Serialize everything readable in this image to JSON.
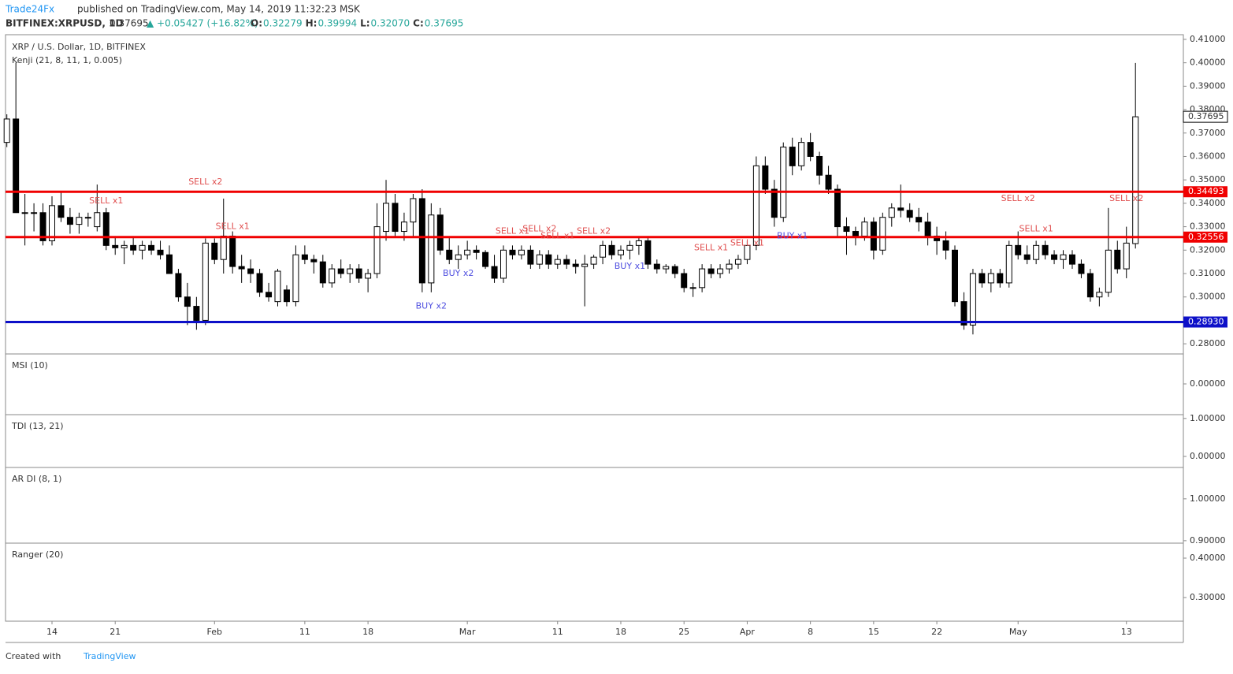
{
  "header": {
    "publisher": "Trade24Fx",
    "published": "published on TradingView.com, May 14, 2019 11:32:23 MSK",
    "symbol": "BITFINEX:XRPUSD, 1D",
    "last": "0.37695",
    "change": "▲ +0.05427 (+16.82%)",
    "ohlc": [
      {
        "k": "O:",
        "v": "0.32279"
      },
      {
        "k": "H:",
        "v": "0.39994"
      },
      {
        "k": "L:",
        "v": "0.32070"
      },
      {
        "k": "C:",
        "v": "0.37695"
      }
    ]
  },
  "footer": {
    "created": "Created with",
    "brand": "TradingView"
  },
  "chart_data": {
    "type": "candlestick",
    "title": "XRP / U.S. Dollar, 1D, BITFINEX",
    "indicator": "Kenji (21, 8, 11, 1, 0.005)",
    "ylim": [
      0.276,
      0.412
    ],
    "yticks": [
      {
        "value": 0.41,
        "label": "0.41000"
      },
      {
        "value": 0.4,
        "label": "0.40000"
      },
      {
        "value": 0.39,
        "label": "0.39000"
      },
      {
        "value": 0.38,
        "label": "0.38000"
      },
      {
        "value": 0.37,
        "label": "0.37000"
      },
      {
        "value": 0.36,
        "label": "0.36000"
      },
      {
        "value": 0.35,
        "label": "0.35000"
      },
      {
        "value": 0.34,
        "label": "0.34000"
      },
      {
        "value": 0.33,
        "label": "0.33000"
      },
      {
        "value": 0.32,
        "label": "0.32000"
      },
      {
        "value": 0.31,
        "label": "0.31000"
      },
      {
        "value": 0.3,
        "label": "0.30000"
      },
      {
        "value": 0.29,
        "label": "0.29000"
      },
      {
        "value": 0.28,
        "label": "0.28000"
      }
    ],
    "xticks": [
      {
        "value": 5,
        "label": "14"
      },
      {
        "value": 12,
        "label": "21"
      },
      {
        "value": 23,
        "label": "Feb"
      },
      {
        "value": 33,
        "label": "11"
      },
      {
        "value": 40,
        "label": "18"
      },
      {
        "value": 51,
        "label": "Mar"
      },
      {
        "value": 61,
        "label": "11"
      },
      {
        "value": 68,
        "label": "18"
      },
      {
        "value": 75,
        "label": "25"
      },
      {
        "value": 82,
        "label": "Apr"
      },
      {
        "value": 89,
        "label": "8"
      },
      {
        "value": 96,
        "label": "15"
      },
      {
        "value": 103,
        "label": "22"
      },
      {
        "value": 112,
        "label": "May"
      },
      {
        "value": 124,
        "label": "13"
      }
    ],
    "levels": [
      {
        "value": 0.34493,
        "label": "0.34493",
        "color": "#f00000"
      },
      {
        "value": 0.32556,
        "label": "0.32556",
        "color": "#f00000"
      },
      {
        "value": 0.2893,
        "label": "0.28930",
        "color": "#0d10c8"
      }
    ],
    "price_label": {
      "value": 0.37695,
      "label": "0.37695"
    },
    "candles": [
      [
        0.366,
        0.378,
        0.364,
        0.376
      ],
      [
        0.376,
        0.4,
        0.336,
        0.336
      ],
      [
        0.336,
        0.344,
        0.322,
        0.336
      ],
      [
        0.336,
        0.34,
        0.328,
        0.336
      ],
      [
        0.336,
        0.34,
        0.322,
        0.324
      ],
      [
        0.324,
        0.343,
        0.322,
        0.339
      ],
      [
        0.339,
        0.345,
        0.332,
        0.334
      ],
      [
        0.334,
        0.338,
        0.327,
        0.331
      ],
      [
        0.331,
        0.336,
        0.327,
        0.334
      ],
      [
        0.334,
        0.336,
        0.33,
        0.334
      ],
      [
        0.33,
        0.348,
        0.328,
        0.336
      ],
      [
        0.336,
        0.338,
        0.32,
        0.322
      ],
      [
        0.322,
        0.326,
        0.318,
        0.321
      ],
      [
        0.321,
        0.324,
        0.314,
        0.322
      ],
      [
        0.322,
        0.326,
        0.318,
        0.32
      ],
      [
        0.32,
        0.324,
        0.316,
        0.322
      ],
      [
        0.322,
        0.324,
        0.318,
        0.32
      ],
      [
        0.32,
        0.324,
        0.316,
        0.318
      ],
      [
        0.318,
        0.322,
        0.31,
        0.31
      ],
      [
        0.31,
        0.312,
        0.298,
        0.3
      ],
      [
        0.3,
        0.306,
        0.288,
        0.296
      ],
      [
        0.296,
        0.3,
        0.286,
        0.29
      ],
      [
        0.29,
        0.325,
        0.288,
        0.323
      ],
      [
        0.323,
        0.325,
        0.314,
        0.316
      ],
      [
        0.316,
        0.342,
        0.31,
        0.326
      ],
      [
        0.326,
        0.328,
        0.31,
        0.313
      ],
      [
        0.313,
        0.318,
        0.306,
        0.312
      ],
      [
        0.312,
        0.316,
        0.306,
        0.31
      ],
      [
        0.31,
        0.312,
        0.3,
        0.302
      ],
      [
        0.302,
        0.306,
        0.298,
        0.3
      ],
      [
        0.298,
        0.312,
        0.296,
        0.311
      ],
      [
        0.303,
        0.305,
        0.296,
        0.298
      ],
      [
        0.298,
        0.322,
        0.296,
        0.318
      ],
      [
        0.318,
        0.322,
        0.314,
        0.316
      ],
      [
        0.316,
        0.318,
        0.31,
        0.315
      ],
      [
        0.315,
        0.318,
        0.304,
        0.306
      ],
      [
        0.306,
        0.314,
        0.304,
        0.312
      ],
      [
        0.312,
        0.316,
        0.308,
        0.31
      ],
      [
        0.31,
        0.314,
        0.306,
        0.312
      ],
      [
        0.312,
        0.314,
        0.306,
        0.308
      ],
      [
        0.308,
        0.312,
        0.302,
        0.31
      ],
      [
        0.31,
        0.34,
        0.308,
        0.33
      ],
      [
        0.328,
        0.35,
        0.324,
        0.34
      ],
      [
        0.34,
        0.344,
        0.326,
        0.328
      ],
      [
        0.328,
        0.336,
        0.324,
        0.332
      ],
      [
        0.332,
        0.344,
        0.326,
        0.342
      ],
      [
        0.342,
        0.346,
        0.302,
        0.306
      ],
      [
        0.306,
        0.34,
        0.302,
        0.335
      ],
      [
        0.335,
        0.338,
        0.318,
        0.32
      ],
      [
        0.32,
        0.326,
        0.314,
        0.316
      ],
      [
        0.316,
        0.322,
        0.312,
        0.318
      ],
      [
        0.318,
        0.324,
        0.316,
        0.32
      ],
      [
        0.32,
        0.322,
        0.316,
        0.319
      ],
      [
        0.319,
        0.32,
        0.312,
        0.313
      ],
      [
        0.313,
        0.318,
        0.306,
        0.308
      ],
      [
        0.308,
        0.322,
        0.306,
        0.32
      ],
      [
        0.32,
        0.322,
        0.316,
        0.318
      ],
      [
        0.318,
        0.322,
        0.316,
        0.32
      ],
      [
        0.32,
        0.322,
        0.312,
        0.314
      ],
      [
        0.314,
        0.32,
        0.312,
        0.318
      ],
      [
        0.318,
        0.32,
        0.312,
        0.314
      ],
      [
        0.314,
        0.318,
        0.312,
        0.316
      ],
      [
        0.316,
        0.318,
        0.312,
        0.314
      ],
      [
        0.314,
        0.316,
        0.31,
        0.313
      ],
      [
        0.313,
        0.318,
        0.296,
        0.314
      ],
      [
        0.314,
        0.318,
        0.312,
        0.317
      ],
      [
        0.317,
        0.324,
        0.314,
        0.322
      ],
      [
        0.322,
        0.324,
        0.316,
        0.318
      ],
      [
        0.318,
        0.322,
        0.316,
        0.32
      ],
      [
        0.32,
        0.324,
        0.316,
        0.322
      ],
      [
        0.322,
        0.326,
        0.318,
        0.324
      ],
      [
        0.324,
        0.326,
        0.312,
        0.314
      ],
      [
        0.314,
        0.316,
        0.31,
        0.312
      ],
      [
        0.312,
        0.314,
        0.31,
        0.313
      ],
      [
        0.313,
        0.314,
        0.308,
        0.31
      ],
      [
        0.31,
        0.312,
        0.302,
        0.304
      ],
      [
        0.304,
        0.306,
        0.3,
        0.304
      ],
      [
        0.304,
        0.314,
        0.302,
        0.312
      ],
      [
        0.312,
        0.314,
        0.308,
        0.31
      ],
      [
        0.31,
        0.314,
        0.308,
        0.312
      ],
      [
        0.312,
        0.316,
        0.31,
        0.314
      ],
      [
        0.314,
        0.318,
        0.312,
        0.316
      ],
      [
        0.316,
        0.324,
        0.314,
        0.322
      ],
      [
        0.322,
        0.36,
        0.32,
        0.356
      ],
      [
        0.356,
        0.36,
        0.344,
        0.346
      ],
      [
        0.346,
        0.35,
        0.33,
        0.334
      ],
      [
        0.334,
        0.366,
        0.332,
        0.364
      ],
      [
        0.364,
        0.368,
        0.352,
        0.356
      ],
      [
        0.356,
        0.368,
        0.354,
        0.366
      ],
      [
        0.366,
        0.37,
        0.358,
        0.36
      ],
      [
        0.36,
        0.362,
        0.348,
        0.352
      ],
      [
        0.352,
        0.356,
        0.344,
        0.346
      ],
      [
        0.346,
        0.348,
        0.326,
        0.33
      ],
      [
        0.33,
        0.334,
        0.318,
        0.328
      ],
      [
        0.328,
        0.33,
        0.322,
        0.326
      ],
      [
        0.326,
        0.334,
        0.324,
        0.332
      ],
      [
        0.332,
        0.334,
        0.316,
        0.32
      ],
      [
        0.32,
        0.336,
        0.318,
        0.334
      ],
      [
        0.334,
        0.34,
        0.33,
        0.338
      ],
      [
        0.338,
        0.348,
        0.334,
        0.337
      ],
      [
        0.337,
        0.34,
        0.332,
        0.334
      ],
      [
        0.334,
        0.338,
        0.328,
        0.332
      ],
      [
        0.332,
        0.336,
        0.322,
        0.326
      ],
      [
        0.326,
        0.33,
        0.318,
        0.324
      ],
      [
        0.324,
        0.328,
        0.316,
        0.32
      ],
      [
        0.32,
        0.322,
        0.296,
        0.298
      ],
      [
        0.298,
        0.302,
        0.286,
        0.288
      ],
      [
        0.288,
        0.312,
        0.284,
        0.31
      ],
      [
        0.31,
        0.312,
        0.304,
        0.306
      ],
      [
        0.306,
        0.312,
        0.302,
        0.31
      ],
      [
        0.31,
        0.312,
        0.304,
        0.306
      ],
      [
        0.306,
        0.324,
        0.304,
        0.322
      ],
      [
        0.322,
        0.328,
        0.316,
        0.318
      ],
      [
        0.318,
        0.322,
        0.314,
        0.316
      ],
      [
        0.316,
        0.324,
        0.314,
        0.322
      ],
      [
        0.322,
        0.324,
        0.316,
        0.318
      ],
      [
        0.318,
        0.32,
        0.314,
        0.316
      ],
      [
        0.316,
        0.32,
        0.312,
        0.318
      ],
      [
        0.318,
        0.32,
        0.312,
        0.314
      ],
      [
        0.314,
        0.316,
        0.308,
        0.31
      ],
      [
        0.31,
        0.312,
        0.298,
        0.3
      ],
      [
        0.3,
        0.304,
        0.296,
        0.302
      ],
      [
        0.302,
        0.338,
        0.3,
        0.32
      ],
      [
        0.32,
        0.324,
        0.31,
        0.312
      ],
      [
        0.312,
        0.33,
        0.308,
        0.323
      ],
      [
        0.32279,
        0.39994,
        0.3207,
        0.37695
      ]
    ],
    "annotations": [
      {
        "text": "SELL x1",
        "index": 11,
        "price": 0.341,
        "color": "#e05050"
      },
      {
        "text": "SELL x2",
        "index": 22,
        "price": 0.349,
        "color": "#e05050"
      },
      {
        "text": "SELL x1",
        "index": 25,
        "price": 0.33,
        "color": "#e05050"
      },
      {
        "text": "BUY x2",
        "index": 47,
        "price": 0.296,
        "color": "#5050e0"
      },
      {
        "text": "BUY x2",
        "index": 50,
        "price": 0.31,
        "color": "#5050e0"
      },
      {
        "text": "SELL x1",
        "index": 56,
        "price": 0.328,
        "color": "#e05050"
      },
      {
        "text": "SELL x2",
        "index": 59,
        "price": 0.329,
        "color": "#e05050"
      },
      {
        "text": "SELL x1",
        "index": 61,
        "price": 0.326,
        "color": "#e05050"
      },
      {
        "text": "SELL x2",
        "index": 65,
        "price": 0.328,
        "color": "#e05050"
      },
      {
        "text": "BUY x1",
        "index": 69,
        "price": 0.313,
        "color": "#5050e0"
      },
      {
        "text": "SELL x1",
        "index": 78,
        "price": 0.321,
        "color": "#e05050"
      },
      {
        "text": "SELL x1",
        "index": 82,
        "price": 0.323,
        "color": "#e05050"
      },
      {
        "text": "BUY x1",
        "index": 87,
        "price": 0.326,
        "color": "#5050e0"
      },
      {
        "text": "SELL x2",
        "index": 112,
        "price": 0.342,
        "color": "#e05050"
      },
      {
        "text": "SELL x1",
        "index": 114,
        "price": 0.329,
        "color": "#e05050"
      },
      {
        "text": "SELL x2",
        "index": 124,
        "price": 0.342,
        "color": "#e05050"
      }
    ],
    "panels": [
      {
        "title": "MSI (10)",
        "ylim": [
          -0.08,
          0.08
        ],
        "yticks": [
          {
            "value": 0,
            "label": "0.00000"
          }
        ]
      },
      {
        "title": "TDI (13, 21)",
        "ylim": [
          -0.27,
          1.1
        ],
        "yticks": [
          {
            "value": 1,
            "label": "1.00000"
          },
          {
            "value": 0,
            "label": "0.00000"
          }
        ]
      },
      {
        "title": "AR DI (8, 1)",
        "ylim": [
          0.896,
          1.075
        ],
        "yticks": [
          {
            "value": 1,
            "label": "1.00000"
          },
          {
            "value": 0.9,
            "label": "0.90000"
          }
        ]
      },
      {
        "title": "Ranger (20)",
        "ylim": [
          0.242,
          0.438
        ],
        "yticks": [
          {
            "value": 0.4,
            "label": "0.40000"
          },
          {
            "value": 0.3,
            "label": "0.30000"
          }
        ]
      }
    ]
  }
}
